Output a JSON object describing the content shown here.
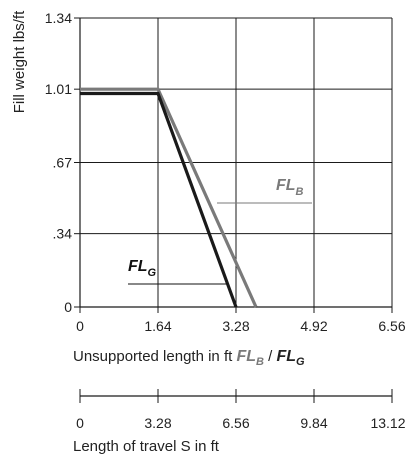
{
  "chart_data": [
    {
      "type": "line",
      "ylabel": "Fill weight lbs/ft",
      "xlabel": "Unsupported length in ft",
      "xlabel_symbols": {
        "b": "FL",
        "b_sub": "B",
        "sep": " / ",
        "g": "FL",
        "g_sub": "G"
      },
      "x_ticks": [
        "0",
        "1.64",
        "3.28",
        "4.92",
        "6.56"
      ],
      "y_ticks": [
        "0",
        ".34",
        ".67",
        "1.01",
        "1.34"
      ],
      "xlim": [
        0,
        6.56
      ],
      "ylim": [
        0,
        1.34
      ],
      "grid": true,
      "series": [
        {
          "name": "FLB",
          "label": "FL",
          "label_sub": "B",
          "color": "#7a7a7a",
          "x": [
            0,
            1.64,
            3.7
          ],
          "y": [
            1.01,
            1.01,
            0
          ]
        },
        {
          "name": "FLG",
          "label": "FL",
          "label_sub": "G",
          "color": "#1a1a1a",
          "x": [
            0,
            1.64,
            3.28
          ],
          "y": [
            0.99,
            0.99,
            0
          ]
        }
      ]
    },
    {
      "type": "axis",
      "xlabel": "Length of travel S in ft",
      "x_ticks": [
        "0",
        "3.28",
        "6.56",
        "9.84",
        "13.12"
      ],
      "xlim": [
        0,
        13.12
      ]
    }
  ]
}
